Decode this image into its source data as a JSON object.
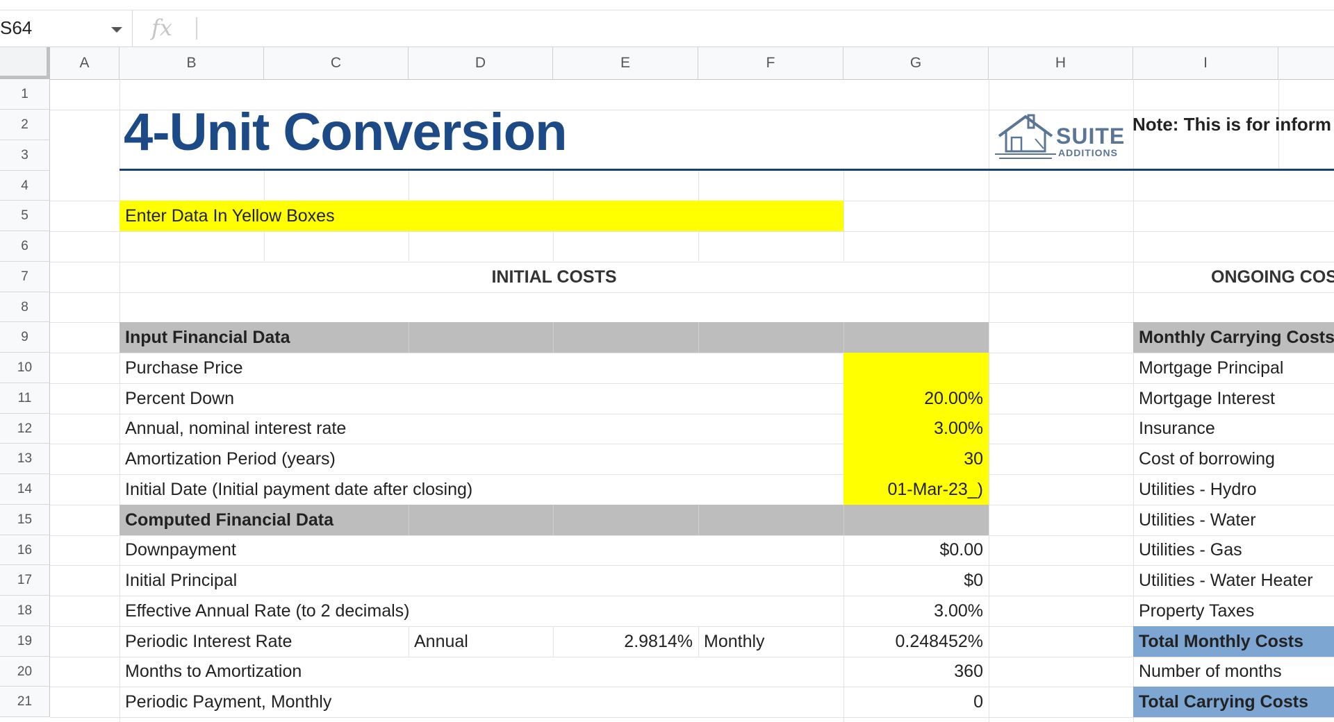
{
  "formula_bar": {
    "cell_ref": "S64",
    "fx_label": "fx"
  },
  "columns": [
    "A",
    "B",
    "C",
    "D",
    "E",
    "F",
    "G",
    "H",
    "I"
  ],
  "rows": [
    "1",
    "2",
    "3",
    "4",
    "5",
    "6",
    "7",
    "8",
    "9",
    "10",
    "11",
    "12",
    "13",
    "14",
    "15",
    "16",
    "17",
    "18",
    "19",
    "20",
    "21"
  ],
  "title": "4-Unit Conversion",
  "logo": {
    "name": "SUITE",
    "tagline": "ADDITIONS"
  },
  "note": "Note: This is for inform",
  "instruction": "Enter Data In Yellow Boxes",
  "initial_costs_header": "INITIAL COSTS",
  "ongoing_costs_header": "ONGOING COS",
  "input_section": "Input Financial Data",
  "computed_section": "Computed Financial Data",
  "inputs": [
    {
      "label": "Purchase Price",
      "value": ""
    },
    {
      "label": "Percent Down",
      "value": "20.00%"
    },
    {
      "label": "Annual, nominal interest rate",
      "value": "3.00%"
    },
    {
      "label": "Amortization Period (years)",
      "value": "30"
    },
    {
      "label": "Initial Date (Initial payment date after closing)",
      "value": "01-Mar-23_)"
    }
  ],
  "computed": [
    {
      "label": "Downpayment",
      "value": "$0.00"
    },
    {
      "label": "Initial Principal",
      "value": "$0"
    },
    {
      "label": "Effective Annual Rate (to 2 decimals)",
      "value": "3.00%"
    },
    {
      "label": "Periodic Interest Rate",
      "value": "0.248452%"
    },
    {
      "label": "Months to Amortization",
      "value": "360"
    },
    {
      "label": "Periodic Payment, Monthly",
      "value": "0"
    }
  ],
  "periodic_extra": {
    "annual_label": "Annual",
    "annual_value": "2.9814%",
    "monthly_label": "Monthly"
  },
  "ongoing": {
    "header": "Monthly Carrying Costs",
    "items": [
      "Mortgage Principal",
      "Mortgage Interest",
      "Insurance",
      "Cost of borrowing",
      "Utilities - Hydro",
      "Utilities - Water",
      "Utilities - Gas",
      "Utilities - Water Heater",
      "Property Taxes"
    ],
    "total_monthly": "Total Monthly Costs",
    "number_of_months": "Number of months",
    "total_carrying": "Total Carrying Costs"
  },
  "colors": {
    "title": "#1c4a86",
    "yellow": "#ffff00",
    "grey": "#bdbdbd",
    "blue": "#7ea6d3"
  }
}
